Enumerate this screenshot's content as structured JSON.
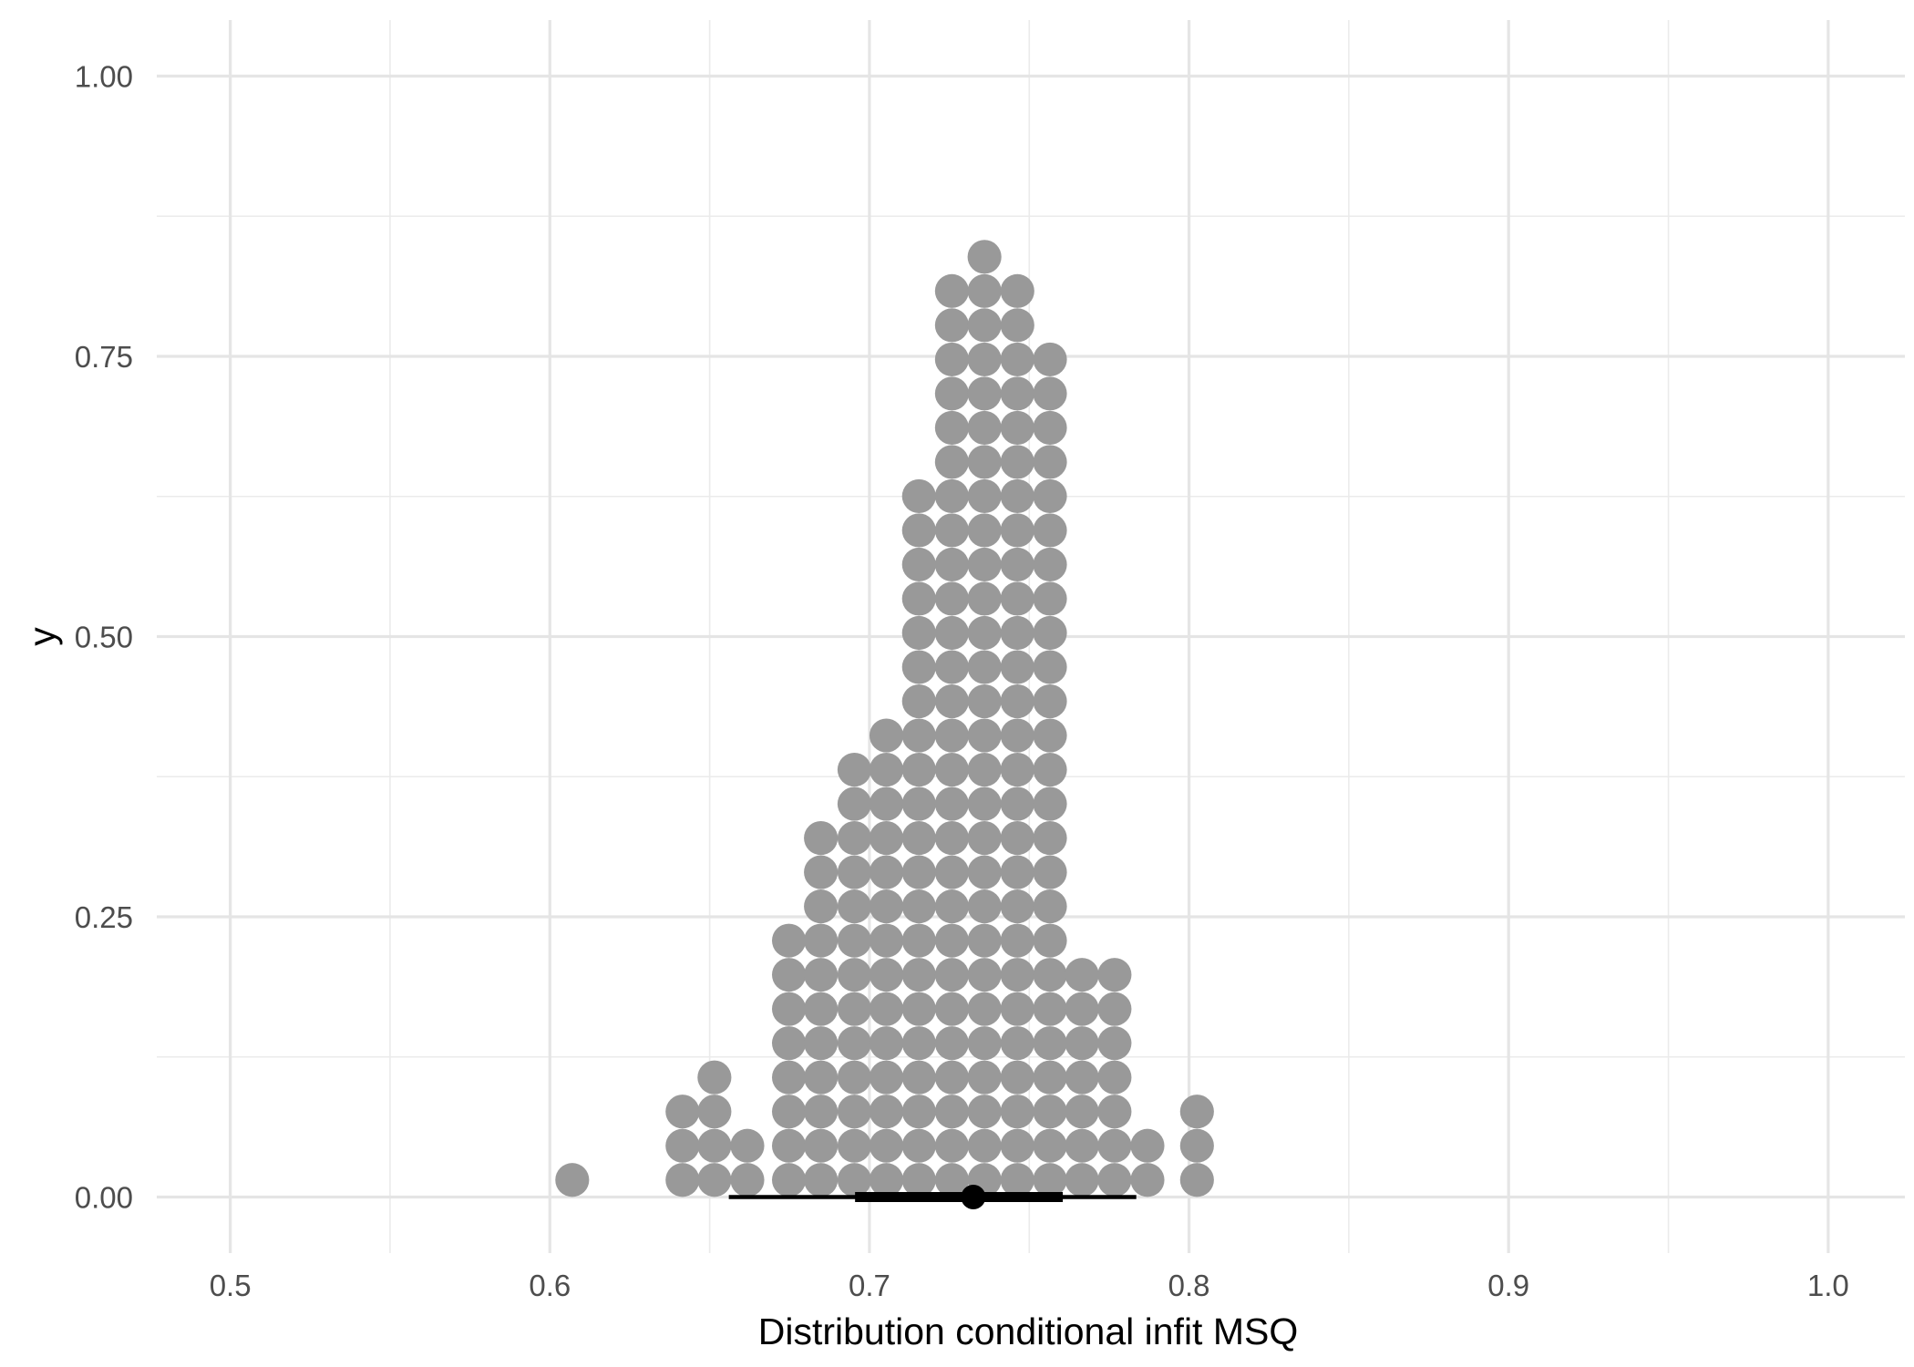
{
  "chart_data": {
    "type": "dotplot",
    "title": "",
    "xlabel": "Distribution conditional infit MSQ",
    "ylabel": "y",
    "xlim": [
      0.477,
      1.024
    ],
    "ylim": [
      -0.05,
      1.05
    ],
    "x_ticks": [
      0.5,
      0.6,
      0.7,
      0.8,
      0.9,
      1.0
    ],
    "x_tick_labels": [
      "0.5",
      "0.6",
      "0.7",
      "0.8",
      "0.9",
      "1.0"
    ],
    "y_ticks": [
      0.0,
      0.25,
      0.5,
      0.75,
      1.0
    ],
    "y_tick_labels": [
      "0.00",
      "0.25",
      "0.50",
      "0.75",
      "1.00"
    ],
    "grid": true,
    "legend": "none",
    "dot_color": "#999999",
    "interval_color": "#000000",
    "dot_spacing": 0.0305,
    "dots": [
      {
        "x": 0.607,
        "count": 1
      },
      {
        "x": 0.6415,
        "count": 3
      },
      {
        "x": 0.6515,
        "count": 4
      },
      {
        "x": 0.6618,
        "count": 2
      },
      {
        "x": 0.6748,
        "count": 8
      },
      {
        "x": 0.6848,
        "count": 11
      },
      {
        "x": 0.6953,
        "count": 13
      },
      {
        "x": 0.7053,
        "count": 14
      },
      {
        "x": 0.7155,
        "count": 21
      },
      {
        "x": 0.7258,
        "count": 27
      },
      {
        "x": 0.736,
        "count": 28
      },
      {
        "x": 0.7463,
        "count": 27
      },
      {
        "x": 0.7565,
        "count": 25
      },
      {
        "x": 0.7665,
        "count": 7
      },
      {
        "x": 0.7767,
        "count": 7
      },
      {
        "x": 0.787,
        "count": 2
      },
      {
        "x": 0.8025,
        "count": 3
      }
    ],
    "point_interval": {
      "point": 0.7325,
      "inner": [
        0.6955,
        0.7605
      ],
      "outer": [
        0.656,
        0.7835
      ]
    }
  }
}
